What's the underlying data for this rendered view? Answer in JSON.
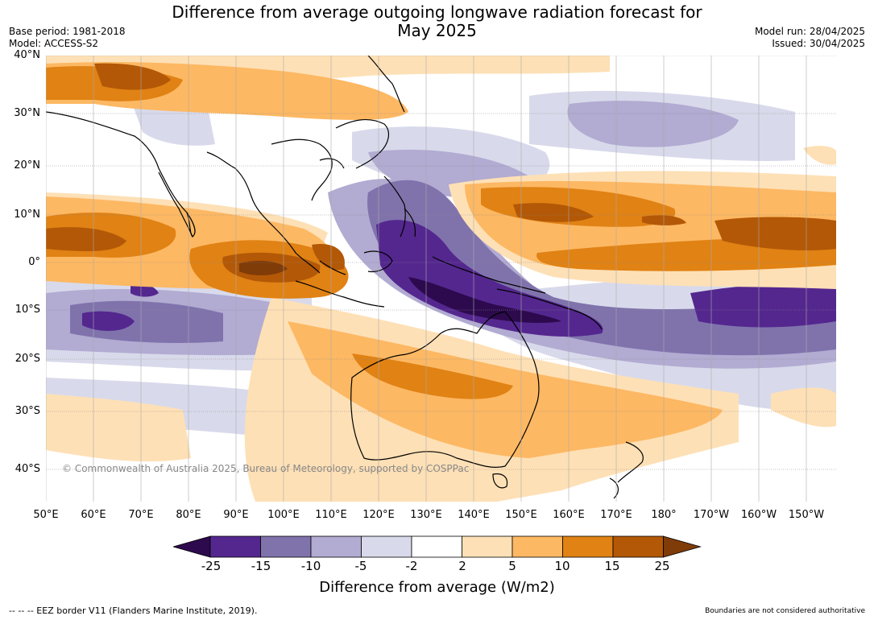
{
  "title": {
    "line1": "Difference from average outgoing longwave radiation forecast for",
    "line2": "May 2025"
  },
  "meta_left": {
    "base_period": "Base period: 1981-2018",
    "model": "Model: ACCESS-S2"
  },
  "meta_right": {
    "model_run": "Model run: 28/04/2025",
    "issued": "Issued: 30/04/2025"
  },
  "latitude_labels": [
    "40°N",
    "30°N",
    "20°N",
    "10°N",
    "0°",
    "10°S",
    "20°S",
    "30°S",
    "40°S"
  ],
  "longitude_labels": [
    "50°E",
    "60°E",
    "70°E",
    "80°E",
    "90°E",
    "100°E",
    "110°E",
    "120°E",
    "130°E",
    "140°E",
    "150°E",
    "160°E",
    "170°E",
    "180°",
    "170°W",
    "160°W",
    "150°W"
  ],
  "copyright": "© Commonwealth of Australia 2025, Bureau of Meteorology, supported by COSPPac",
  "colorbar": {
    "labels": [
      "-25",
      "-15",
      "-10",
      "-5",
      "-2",
      "2",
      "5",
      "10",
      "15",
      "25"
    ],
    "colors": [
      "#2d0a4e",
      "#54278f",
      "#8073ac",
      "#b2abd2",
      "#d8daeb",
      "#ffffff",
      "#fee0b6",
      "#fdb863",
      "#e08214",
      "#b35806",
      "#7f3b08"
    ],
    "title": "Difference from average (W/m2)"
  },
  "footer": {
    "eez": "--  --  -- EEZ border V11 (Flanders Marine Institute, 2019).",
    "boundaries": "Boundaries are not considered authoritative"
  }
}
